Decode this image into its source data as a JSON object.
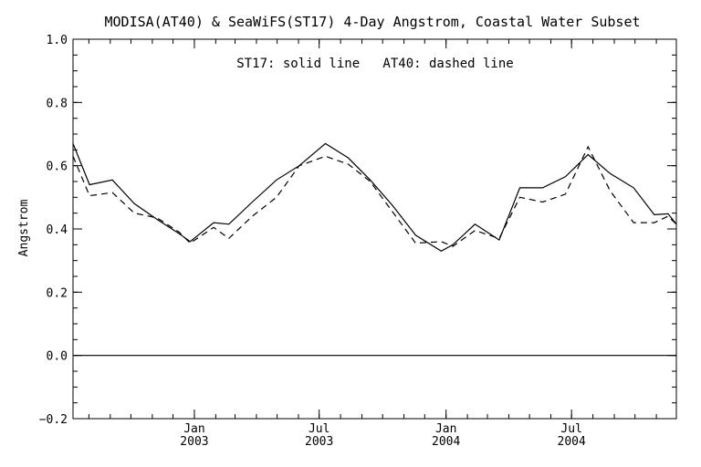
{
  "chart_data": {
    "type": "line",
    "title": "MODISA(AT40) & SeaWiFS(ST17) 4-Day Angstrom, Coastal Water Subset",
    "annotation": "ST17: solid line   AT40: dashed line",
    "xlabel": "",
    "ylabel": "Angstrom",
    "ylim": [
      -0.2,
      1.0
    ],
    "y_ticks": [
      "1.0",
      "0.8",
      "0.6",
      "0.4",
      "0.2",
      "0.0",
      "−0.2"
    ],
    "y_tick_values": [
      1.0,
      0.8,
      0.6,
      0.4,
      0.2,
      0.0,
      -0.2
    ],
    "xlim": [
      "2002-07-09",
      "2004-11-30"
    ],
    "x_ticks": [
      {
        "date": "2003-01-01",
        "month": "Jan",
        "year": "2003"
      },
      {
        "date": "2003-07-01",
        "month": "Jul",
        "year": "2003"
      },
      {
        "date": "2004-01-01",
        "month": "Jan",
        "year": "2004"
      },
      {
        "date": "2004-07-01",
        "month": "Jul",
        "year": "2004"
      }
    ],
    "grid": false,
    "reference_line": 0.0,
    "series": [
      {
        "name": "ST17",
        "style": "solid",
        "color": "#000000",
        "points": [
          {
            "x": "2002-07-09",
            "y": 0.67
          },
          {
            "x": "2002-08-02",
            "y": 0.54
          },
          {
            "x": "2002-09-04",
            "y": 0.555
          },
          {
            "x": "2002-10-06",
            "y": 0.48
          },
          {
            "x": "2002-11-08",
            "y": 0.43
          },
          {
            "x": "2002-12-10",
            "y": 0.385
          },
          {
            "x": "2002-12-26",
            "y": 0.36
          },
          {
            "x": "2003-01-29",
            "y": 0.42
          },
          {
            "x": "2003-02-20",
            "y": 0.415
          },
          {
            "x": "2003-03-26",
            "y": 0.485
          },
          {
            "x": "2003-04-30",
            "y": 0.555
          },
          {
            "x": "2003-06-02",
            "y": 0.6
          },
          {
            "x": "2003-07-10",
            "y": 0.67
          },
          {
            "x": "2003-08-12",
            "y": 0.625
          },
          {
            "x": "2003-09-13",
            "y": 0.555
          },
          {
            "x": "2003-10-15",
            "y": 0.475
          },
          {
            "x": "2003-11-18",
            "y": 0.38
          },
          {
            "x": "2003-12-25",
            "y": 0.33
          },
          {
            "x": "2004-01-11",
            "y": 0.35
          },
          {
            "x": "2004-02-12",
            "y": 0.415
          },
          {
            "x": "2004-03-18",
            "y": 0.365
          },
          {
            "x": "2004-04-17",
            "y": 0.53
          },
          {
            "x": "2004-05-20",
            "y": 0.53
          },
          {
            "x": "2004-06-22",
            "y": 0.565
          },
          {
            "x": "2004-07-25",
            "y": 0.635
          },
          {
            "x": "2004-08-26",
            "y": 0.575
          },
          {
            "x": "2004-09-29",
            "y": 0.53
          },
          {
            "x": "2004-10-29",
            "y": 0.445
          },
          {
            "x": "2004-11-18",
            "y": 0.448
          },
          {
            "x": "2004-11-30",
            "y": 0.415
          }
        ]
      },
      {
        "name": "AT40",
        "style": "dashed",
        "color": "#000000",
        "points": [
          {
            "x": "2002-07-09",
            "y": 0.63
          },
          {
            "x": "2002-08-02",
            "y": 0.505
          },
          {
            "x": "2002-09-04",
            "y": 0.515
          },
          {
            "x": "2002-10-06",
            "y": 0.45
          },
          {
            "x": "2002-11-08",
            "y": 0.435
          },
          {
            "x": "2002-12-10",
            "y": 0.39
          },
          {
            "x": "2002-12-26",
            "y": 0.355
          },
          {
            "x": "2003-01-29",
            "y": 0.405
          },
          {
            "x": "2003-02-20",
            "y": 0.37
          },
          {
            "x": "2003-03-26",
            "y": 0.44
          },
          {
            "x": "2003-04-30",
            "y": 0.5
          },
          {
            "x": "2003-06-02",
            "y": 0.6
          },
          {
            "x": "2003-07-10",
            "y": 0.63
          },
          {
            "x": "2003-08-12",
            "y": 0.605
          },
          {
            "x": "2003-09-13",
            "y": 0.55
          },
          {
            "x": "2003-10-15",
            "y": 0.455
          },
          {
            "x": "2003-11-18",
            "y": 0.355
          },
          {
            "x": "2003-12-25",
            "y": 0.36
          },
          {
            "x": "2004-01-11",
            "y": 0.345
          },
          {
            "x": "2004-02-12",
            "y": 0.395
          },
          {
            "x": "2004-03-18",
            "y": 0.37
          },
          {
            "x": "2004-04-17",
            "y": 0.5
          },
          {
            "x": "2004-05-20",
            "y": 0.485
          },
          {
            "x": "2004-06-22",
            "y": 0.51
          },
          {
            "x": "2004-07-25",
            "y": 0.66
          },
          {
            "x": "2004-08-26",
            "y": 0.52
          },
          {
            "x": "2004-09-29",
            "y": 0.42
          },
          {
            "x": "2004-10-29",
            "y": 0.42
          },
          {
            "x": "2004-11-18",
            "y": 0.44
          },
          {
            "x": "2004-11-30",
            "y": 0.415
          }
        ]
      }
    ]
  }
}
